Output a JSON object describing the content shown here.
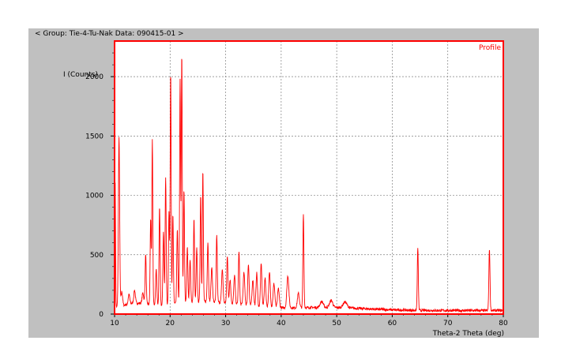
{
  "header": {
    "group_label": "< Group: Tie-4-Tu-Nak  Data: 090415-01 >"
  },
  "chart_data": {
    "type": "line",
    "title": "",
    "xlabel": "Theta-2 Theta (deg)",
    "ylabel": "I (Counts)",
    "xlim": [
      10,
      80
    ],
    "ylim": [
      0,
      2300
    ],
    "x_ticks": [
      10,
      20,
      30,
      40,
      50,
      60,
      70,
      80
    ],
    "y_ticks": [
      0,
      500,
      1000,
      1500,
      2000
    ],
    "x_tick_labels": [
      "10",
      "20",
      "30",
      "40",
      "50",
      "60",
      "70",
      "80"
    ],
    "y_tick_labels": [
      "0",
      "500",
      "1000",
      "1500",
      "2000"
    ],
    "grid": true,
    "legend_position": "top-right",
    "colors": {
      "line": "#ff0000",
      "frame": "#ff0000",
      "grid": "#808080",
      "panel": "#c0c0c0"
    },
    "series": [
      {
        "name": "Profile",
        "peaks": [
          [
            10.1,
            1100,
            0.1
          ],
          [
            10.8,
            1420,
            0.16
          ],
          [
            11.3,
            120,
            0.2
          ],
          [
            12.6,
            80,
            0.2
          ],
          [
            13.6,
            110,
            0.2
          ],
          [
            15.1,
            90,
            0.2
          ],
          [
            15.6,
            420,
            0.14
          ],
          [
            16.5,
            720,
            0.13
          ],
          [
            16.8,
            1380,
            0.12
          ],
          [
            17.5,
            300,
            0.15
          ],
          [
            18.1,
            820,
            0.13
          ],
          [
            18.8,
            620,
            0.14
          ],
          [
            19.2,
            1080,
            0.13
          ],
          [
            19.8,
            780,
            0.13
          ],
          [
            20.1,
            1960,
            0.12
          ],
          [
            20.5,
            750,
            0.13
          ],
          [
            21.3,
            620,
            0.14
          ],
          [
            21.8,
            1880,
            0.12
          ],
          [
            22.1,
            2100,
            0.12
          ],
          [
            22.5,
            950,
            0.13
          ],
          [
            23.1,
            470,
            0.14
          ],
          [
            23.6,
            350,
            0.15
          ],
          [
            24.3,
            700,
            0.13
          ],
          [
            24.8,
            450,
            0.14
          ],
          [
            25.5,
            900,
            0.13
          ],
          [
            25.9,
            1100,
            0.12
          ],
          [
            26.8,
            500,
            0.15
          ],
          [
            27.5,
            290,
            0.18
          ],
          [
            28.4,
            560,
            0.14
          ],
          [
            29.4,
            280,
            0.18
          ],
          [
            30.3,
            400,
            0.15
          ],
          [
            30.8,
            200,
            0.18
          ],
          [
            31.6,
            240,
            0.18
          ],
          [
            32.4,
            440,
            0.15
          ],
          [
            33.3,
            270,
            0.2
          ],
          [
            34.1,
            350,
            0.17
          ],
          [
            34.9,
            220,
            0.2
          ],
          [
            35.6,
            280,
            0.18
          ],
          [
            36.4,
            360,
            0.18
          ],
          [
            37.1,
            240,
            0.2
          ],
          [
            37.9,
            290,
            0.2
          ],
          [
            38.7,
            200,
            0.22
          ],
          [
            39.5,
            160,
            0.22
          ],
          [
            41.2,
            270,
            0.25
          ],
          [
            43.1,
            120,
            0.25
          ],
          [
            44.0,
            790,
            0.13
          ],
          [
            47.3,
            50,
            0.4
          ],
          [
            49.0,
            60,
            0.4
          ],
          [
            51.5,
            50,
            0.5
          ],
          [
            64.6,
            530,
            0.13
          ],
          [
            77.5,
            520,
            0.14
          ]
        ]
      }
    ]
  }
}
